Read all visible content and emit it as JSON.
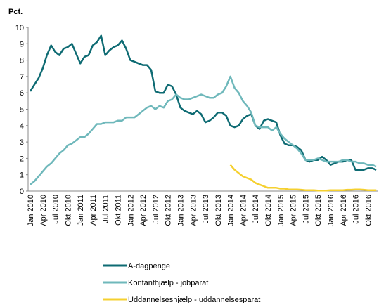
{
  "chart_data": {
    "type": "line",
    "y_label": "Pct.",
    "categories": [
      "Jan 2010",
      null,
      null,
      "Apr 2010",
      null,
      null,
      "Jul 2010",
      null,
      null,
      "Okt 2010",
      null,
      null,
      "Jan 2011",
      null,
      null,
      "Apr 2011",
      null,
      null,
      "Jul 2011",
      null,
      null,
      "Okt 2011",
      null,
      null,
      "Jan 2012",
      null,
      null,
      "Apr 2012",
      null,
      null,
      "Jul 2012",
      null,
      null,
      "Okt 2012",
      null,
      null,
      "Jan 2013",
      null,
      null,
      "Apr 2013",
      null,
      null,
      "Jul 2013",
      null,
      null,
      "Okt 2013",
      null,
      null,
      "Jan 2014",
      null,
      null,
      "Apr 2014",
      null,
      null,
      "Jul 2014",
      null,
      null,
      "Okt 2014",
      null,
      null,
      "Jan 2015",
      null,
      null,
      "Apr 2015",
      null,
      null,
      "Jul 2015",
      null,
      null,
      "Okt 2015",
      null,
      null,
      "Jan 2016",
      null,
      null,
      "Apr 2016",
      null,
      null,
      "Jul 2016",
      null,
      null,
      "Okt 2016",
      null,
      null
    ],
    "series": [
      {
        "name": "A-dagpenge",
        "color": "#0e6b73",
        "values": [
          6.1,
          6.5,
          6.9,
          7.5,
          8.3,
          8.9,
          8.5,
          8.3,
          8.7,
          8.8,
          9.0,
          8.4,
          7.8,
          8.2,
          8.3,
          8.9,
          9.1,
          9.5,
          8.3,
          8.6,
          8.8,
          8.9,
          9.2,
          8.7,
          8.0,
          7.9,
          7.8,
          7.7,
          7.7,
          7.4,
          6.1,
          6.0,
          6.0,
          6.5,
          6.4,
          5.9,
          5.1,
          4.9,
          4.8,
          4.7,
          4.9,
          4.7,
          4.2,
          4.3,
          4.5,
          4.8,
          4.8,
          4.6,
          4.0,
          3.9,
          4.0,
          4.4,
          4.6,
          4.7,
          4.0,
          3.8,
          4.3,
          4.4,
          4.3,
          4.2,
          3.4,
          2.9,
          2.8,
          2.8,
          2.7,
          2.5,
          1.9,
          1.8,
          1.9,
          1.9,
          2.1,
          1.9,
          1.6,
          1.7,
          1.8,
          1.8,
          1.9,
          1.9,
          1.3,
          1.3,
          1.3,
          1.4,
          1.4,
          1.3
        ]
      },
      {
        "name": "Kontanthjælp - jobparat",
        "color": "#6fb8bb",
        "values": [
          0.4,
          0.6,
          0.9,
          1.2,
          1.5,
          1.7,
          2.0,
          2.3,
          2.5,
          2.8,
          2.9,
          3.1,
          3.3,
          3.3,
          3.5,
          3.8,
          4.1,
          4.1,
          4.2,
          4.2,
          4.2,
          4.3,
          4.3,
          4.5,
          4.5,
          4.5,
          4.7,
          4.9,
          5.1,
          5.2,
          5.0,
          5.2,
          5.1,
          5.5,
          5.6,
          5.9,
          5.7,
          5.6,
          5.6,
          5.7,
          5.8,
          5.9,
          5.8,
          5.7,
          5.7,
          5.9,
          6.0,
          6.4,
          7.0,
          6.3,
          6.0,
          5.5,
          5.2,
          4.8,
          4.0,
          3.9,
          3.9,
          3.9,
          3.7,
          3.9,
          3.5,
          3.2,
          3.0,
          2.8,
          2.6,
          2.3,
          1.9,
          1.9,
          1.9,
          2.0,
          1.9,
          1.8,
          1.8,
          1.8,
          1.8,
          1.9,
          1.9,
          1.8,
          1.8,
          1.7,
          1.7,
          1.6,
          1.6,
          1.5
        ]
      },
      {
        "name": "Uddannelseshjælp - uddannelsesparat",
        "color": "#f5d030",
        "values": [
          null,
          null,
          null,
          null,
          null,
          null,
          null,
          null,
          null,
          null,
          null,
          null,
          null,
          null,
          null,
          null,
          null,
          null,
          null,
          null,
          null,
          null,
          null,
          null,
          null,
          null,
          null,
          null,
          null,
          null,
          null,
          null,
          null,
          null,
          null,
          null,
          null,
          null,
          null,
          null,
          null,
          null,
          null,
          null,
          null,
          null,
          null,
          null,
          1.6,
          1.3,
          1.1,
          0.9,
          0.8,
          0.7,
          0.5,
          0.4,
          0.3,
          0.2,
          0.2,
          0.2,
          0.15,
          0.15,
          0.1,
          0.1,
          0.1,
          0.08,
          0.05,
          0.05,
          0.05,
          0.03,
          0.03,
          0.03,
          0.05,
          0.05,
          0.05,
          0.05,
          0.08,
          0.08,
          0.1,
          0.1,
          0.08,
          0.05,
          0.05,
          0.05
        ]
      }
    ],
    "ylim": [
      0,
      10
    ],
    "yticks": [
      0,
      1,
      2,
      3,
      4,
      5,
      6,
      7,
      8,
      9,
      10
    ],
    "grid": false,
    "legend": "bottom"
  }
}
